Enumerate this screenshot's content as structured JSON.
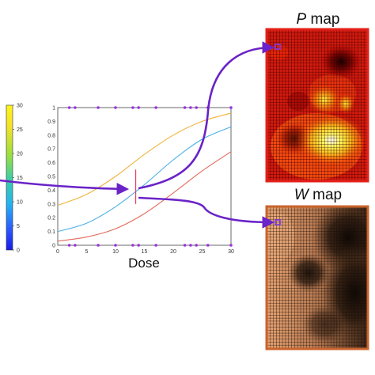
{
  "colors": {
    "curve_high": "#f2b23a",
    "curve_mid": "#4ab0e6",
    "curve_low": "#e36a5b",
    "marker": "#9b30e0",
    "arrow": "#6a23c8",
    "p_map_border": "#e3201b",
    "w_map_border": "#c9632c",
    "dose_line": "#e53b5a"
  },
  "colorbar": {
    "ticks": [
      "0",
      "5",
      "10",
      "15",
      "20",
      "25",
      "30"
    ],
    "colormap": "jet"
  },
  "plot": {
    "xlabel": "Dose",
    "xticks": [
      "0",
      "5",
      "10",
      "15",
      "20",
      "25",
      "30"
    ],
    "yticks": [
      "0",
      "0.1",
      "0.2",
      "0.3",
      "0.4",
      "0.5",
      "0.6",
      "0.7",
      "0.8",
      "0.9",
      "1"
    ],
    "marker_doses": [
      2,
      3,
      7,
      10,
      13,
      14,
      17,
      22,
      23,
      24,
      26,
      30
    ],
    "selected_dose": 13.5
  },
  "chart_data": {
    "type": "line",
    "xlim": [
      0,
      30
    ],
    "ylim": [
      0,
      1
    ],
    "series": [
      {
        "x": [
          0,
          5,
          10,
          15,
          20,
          25,
          30
        ],
        "values": [
          0.29,
          0.37,
          0.5,
          0.66,
          0.8,
          0.9,
          0.96
        ]
      },
      {
        "x": [
          0,
          5,
          10,
          15,
          20,
          25,
          30
        ],
        "values": [
          0.1,
          0.16,
          0.28,
          0.44,
          0.62,
          0.77,
          0.86
        ]
      },
      {
        "x": [
          0,
          5,
          10,
          15,
          20,
          25,
          30
        ],
        "values": [
          0.03,
          0.06,
          0.12,
          0.23,
          0.38,
          0.54,
          0.68
        ]
      }
    ],
    "markers_y0": [
      2,
      3,
      7,
      10,
      13,
      14,
      17,
      22,
      23,
      24,
      26,
      30
    ],
    "markers_y1": [
      2,
      3,
      7,
      10,
      13,
      14,
      17,
      22,
      23,
      24,
      26,
      30
    ]
  },
  "p_map": {
    "title_italic": "P",
    "title_rest": " map",
    "colormap": "hot",
    "grid_cells": 33
  },
  "w_map": {
    "title_italic": "W",
    "title_rest": " map",
    "colormap": "copper",
    "grid_cells": 33
  }
}
